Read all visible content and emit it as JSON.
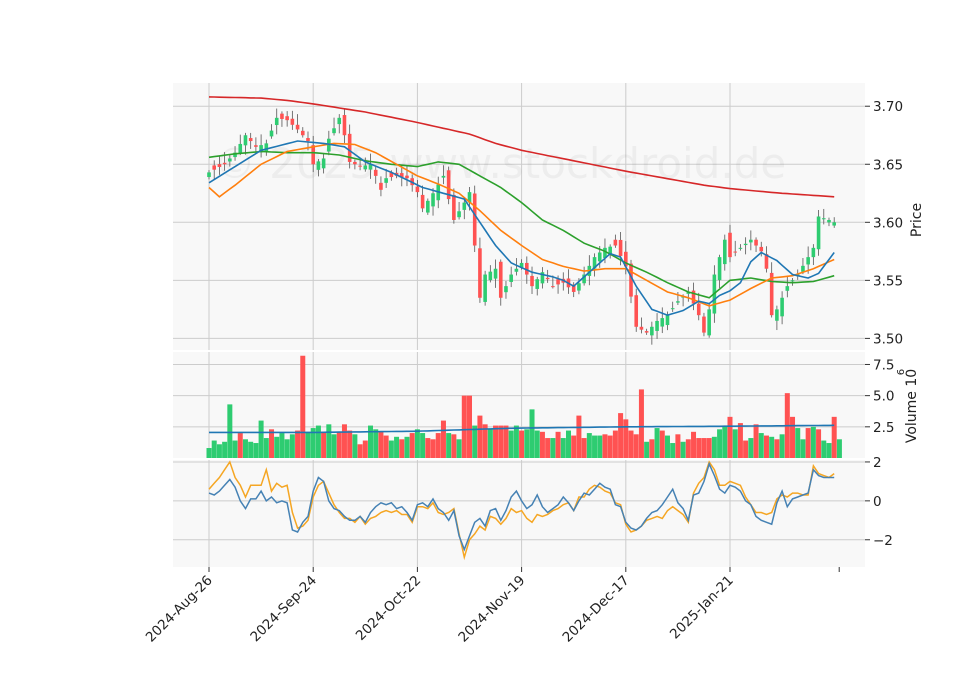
{
  "watermark": "© 2025 www.stockdroid.de",
  "colors": {
    "up": "#2ecc71",
    "down": "#ff5252",
    "ma_fast": "#1f77b4",
    "ma_mid": "#ff7f0e",
    "ma_long": "#2ca02c",
    "ma_200": "#d62728",
    "vol_avg": "#1f77b4",
    "osc_main": "#4682b4",
    "osc_signal": "#f5a623",
    "grid": "#cccccc",
    "panel_bg": "#f8f8f8"
  },
  "chart_data": [
    {
      "type": "candlestick",
      "panel": "price",
      "ylabel": "Price",
      "ylim": [
        3.49,
        3.72
      ],
      "yticks": [
        "3.50",
        "3.55",
        "3.60",
        "3.65",
        "3.70"
      ],
      "ytick_values": [
        3.5,
        3.55,
        3.6,
        3.65,
        3.7
      ],
      "xtick_labels": [
        "2024-Aug-26",
        "2024-Sep-24",
        "2024-Oct-22",
        "2024-Nov-19",
        "2024-Dec-17",
        "2025-Jan-21"
      ],
      "xtick_index": [
        0,
        20,
        40,
        60,
        80,
        100
      ],
      "n_bars": 121,
      "ohlc_anchors": [
        [
          0,
          3.643
        ],
        [
          3,
          3.65
        ],
        [
          5,
          3.66
        ],
        [
          7,
          3.675
        ],
        [
          9,
          3.665
        ],
        [
          11,
          3.668
        ],
        [
          13,
          3.69
        ],
        [
          15,
          3.688
        ],
        [
          17,
          3.68
        ],
        [
          19,
          3.67
        ],
        [
          20,
          3.65
        ],
        [
          22,
          3.655
        ],
        [
          23,
          3.672
        ],
        [
          25,
          3.69
        ],
        [
          26,
          3.675
        ],
        [
          27,
          3.652
        ],
        [
          29,
          3.648
        ],
        [
          31,
          3.65
        ],
        [
          32,
          3.64
        ],
        [
          33,
          3.628
        ],
        [
          34,
          3.638
        ],
        [
          36,
          3.64
        ],
        [
          38,
          3.638
        ],
        [
          40,
          3.626
        ],
        [
          41,
          3.612
        ],
        [
          43,
          3.625
        ],
        [
          45,
          3.64
        ],
        [
          46,
          3.62
        ],
        [
          47,
          3.602
        ],
        [
          49,
          3.617
        ],
        [
          50,
          3.626
        ],
        [
          51,
          3.58
        ],
        [
          52,
          3.535
        ],
        [
          53,
          3.555
        ],
        [
          55,
          3.56
        ],
        [
          56,
          3.535
        ],
        [
          58,
          3.555
        ],
        [
          60,
          3.565
        ],
        [
          62,
          3.545
        ],
        [
          64,
          3.557
        ],
        [
          66,
          3.545
        ],
        [
          68,
          3.548
        ],
        [
          70,
          3.54
        ],
        [
          72,
          3.555
        ],
        [
          74,
          3.57
        ],
        [
          76,
          3.578
        ],
        [
          78,
          3.58
        ],
        [
          80,
          3.562
        ],
        [
          82,
          3.51
        ],
        [
          84,
          3.505
        ],
        [
          86,
          3.515
        ],
        [
          88,
          3.52
        ],
        [
          90,
          3.532
        ],
        [
          92,
          3.54
        ],
        [
          94,
          3.52
        ],
        [
          95,
          3.505
        ],
        [
          96,
          3.525
        ],
        [
          97,
          3.555
        ],
        [
          99,
          3.585
        ],
        [
          100,
          3.57
        ],
        [
          102,
          3.578
        ],
        [
          104,
          3.585
        ],
        [
          106,
          3.575
        ],
        [
          107,
          3.56
        ],
        [
          108,
          3.52
        ],
        [
          109,
          3.525
        ],
        [
          111,
          3.545
        ],
        [
          113,
          3.555
        ],
        [
          115,
          3.57
        ],
        [
          116,
          3.578
        ],
        [
          117,
          3.605
        ],
        [
          119,
          3.602
        ],
        [
          120,
          3.6
        ]
      ],
      "ma_fast_anchors": [
        [
          0,
          3.634
        ],
        [
          10,
          3.662
        ],
        [
          17,
          3.67
        ],
        [
          22,
          3.668
        ],
        [
          26,
          3.665
        ],
        [
          30,
          3.652
        ],
        [
          35,
          3.643
        ],
        [
          41,
          3.63
        ],
        [
          45,
          3.625
        ],
        [
          49,
          3.62
        ],
        [
          52,
          3.6
        ],
        [
          55,
          3.58
        ],
        [
          58,
          3.565
        ],
        [
          62,
          3.557
        ],
        [
          66,
          3.553
        ],
        [
          68,
          3.55
        ],
        [
          70,
          3.545
        ],
        [
          75,
          3.565
        ],
        [
          77,
          3.573
        ],
        [
          79,
          3.57
        ],
        [
          82,
          3.545
        ],
        [
          85,
          3.525
        ],
        [
          88,
          3.52
        ],
        [
          91,
          3.524
        ],
        [
          94,
          3.532
        ],
        [
          96,
          3.53
        ],
        [
          98,
          3.537
        ],
        [
          100,
          3.541
        ],
        [
          102,
          3.548
        ],
        [
          104,
          3.566
        ],
        [
          106,
          3.574
        ],
        [
          109,
          3.567
        ],
        [
          112,
          3.555
        ],
        [
          115,
          3.552
        ],
        [
          117,
          3.556
        ],
        [
          120,
          3.574
        ]
      ],
      "ma_mid_anchors": [
        [
          0,
          3.63
        ],
        [
          2,
          3.622
        ],
        [
          5,
          3.632
        ],
        [
          10,
          3.65
        ],
        [
          15,
          3.661
        ],
        [
          20,
          3.665
        ],
        [
          24,
          3.668
        ],
        [
          28,
          3.667
        ],
        [
          32,
          3.66
        ],
        [
          36,
          3.65
        ],
        [
          40,
          3.64
        ],
        [
          44,
          3.633
        ],
        [
          48,
          3.625
        ],
        [
          52,
          3.61
        ],
        [
          56,
          3.593
        ],
        [
          60,
          3.58
        ],
        [
          64,
          3.568
        ],
        [
          68,
          3.562
        ],
        [
          72,
          3.558
        ],
        [
          76,
          3.56
        ],
        [
          80,
          3.56
        ],
        [
          84,
          3.55
        ],
        [
          88,
          3.54
        ],
        [
          92,
          3.535
        ],
        [
          96,
          3.528
        ],
        [
          100,
          3.533
        ],
        [
          104,
          3.543
        ],
        [
          108,
          3.552
        ],
        [
          112,
          3.554
        ],
        [
          116,
          3.56
        ],
        [
          120,
          3.568
        ]
      ],
      "ma_long_anchors": [
        [
          0,
          3.656
        ],
        [
          5,
          3.659
        ],
        [
          10,
          3.661
        ],
        [
          15,
          3.66
        ],
        [
          20,
          3.66
        ],
        [
          25,
          3.658
        ],
        [
          30,
          3.653
        ],
        [
          35,
          3.65
        ],
        [
          40,
          3.648
        ],
        [
          44,
          3.652
        ],
        [
          48,
          3.65
        ],
        [
          52,
          3.64
        ],
        [
          56,
          3.63
        ],
        [
          60,
          3.617
        ],
        [
          64,
          3.602
        ],
        [
          68,
          3.593
        ],
        [
          72,
          3.582
        ],
        [
          76,
          3.575
        ],
        [
          80,
          3.565
        ],
        [
          84,
          3.557
        ],
        [
          88,
          3.548
        ],
        [
          92,
          3.54
        ],
        [
          96,
          3.535
        ],
        [
          100,
          3.55
        ],
        [
          104,
          3.552
        ],
        [
          108,
          3.549
        ],
        [
          112,
          3.548
        ],
        [
          116,
          3.549
        ],
        [
          120,
          3.554
        ]
      ],
      "ma_200_anchors": [
        [
          0,
          3.708
        ],
        [
          10,
          3.707
        ],
        [
          15,
          3.705
        ],
        [
          20,
          3.702
        ],
        [
          30,
          3.695
        ],
        [
          40,
          3.686
        ],
        [
          50,
          3.676
        ],
        [
          55,
          3.668
        ],
        [
          60,
          3.662
        ],
        [
          70,
          3.653
        ],
        [
          80,
          3.644
        ],
        [
          90,
          3.636
        ],
        [
          95,
          3.632
        ],
        [
          100,
          3.629
        ],
        [
          110,
          3.625
        ],
        [
          120,
          3.622
        ]
      ]
    },
    {
      "type": "bar",
      "panel": "volume",
      "ylabel": "Volume  10^6",
      "ylim": [
        0,
        8.5
      ],
      "yticks": [
        "2.5",
        "5.0",
        "7.5"
      ],
      "ytick_values": [
        2.5,
        5.0,
        7.5
      ],
      "values": [
        0.8,
        1.4,
        1.1,
        1.3,
        4.3,
        1.4,
        2.0,
        1.5,
        1.3,
        1.2,
        3.0,
        1.6,
        2.3,
        1.7,
        2.0,
        1.5,
        1.9,
        2.2,
        8.2,
        2.1,
        2.4,
        2.6,
        2.1,
        2.7,
        1.9,
        2.1,
        2.7,
        2.2,
        1.9,
        1.1,
        1.4,
        2.6,
        2.3,
        2.1,
        1.8,
        1.4,
        1.7,
        1.5,
        1.7,
        2.0,
        2.3,
        2.0,
        1.6,
        1.5,
        2.0,
        3.0,
        2.0,
        1.9,
        1.5,
        5.0,
        5.0,
        2.6,
        3.4,
        2.7,
        2.3,
        2.6,
        2.6,
        2.6,
        2.2,
        2.6,
        2.2,
        2.3,
        3.9,
        2.2,
        2.1,
        1.6,
        1.6,
        2.1,
        1.6,
        2.2,
        1.8,
        3.4,
        1.6,
        2.0,
        1.8,
        1.8,
        1.9,
        1.8,
        2.2,
        3.6,
        3.1,
        2.2,
        1.9,
        5.5,
        1.3,
        1.5,
        2.4,
        2.2,
        1.8,
        1.2,
        1.9,
        1.3,
        1.5,
        2.1,
        1.6,
        1.6,
        1.6,
        1.7,
        2.3,
        2.6,
        3.3,
        2.3,
        2.8,
        1.4,
        1.6,
        2.7,
        2.0,
        1.8,
        1.7,
        1.5,
        1.9,
        5.2,
        3.3,
        2.4,
        1.5,
        2.4,
        2.5,
        2.3,
        1.4,
        1.2,
        3.3,
        1.5
      ],
      "down": [
        0,
        0,
        0,
        0,
        0,
        0,
        1,
        0,
        0,
        0,
        0,
        0,
        1,
        0,
        0,
        0,
        0,
        1,
        1,
        0,
        0,
        0,
        1,
        0,
        0,
        1,
        1,
        1,
        0,
        1,
        1,
        0,
        0,
        1,
        1,
        0,
        0,
        1,
        0,
        1,
        0,
        0,
        1,
        1,
        1,
        1,
        0,
        1,
        0,
        1,
        1,
        0,
        1,
        1,
        0,
        1,
        1,
        1,
        0,
        0,
        1,
        0,
        0,
        0,
        1,
        1,
        0,
        1,
        0,
        0,
        1,
        1,
        1,
        0,
        0,
        0,
        1,
        1,
        1,
        1,
        1,
        1,
        1,
        1,
        0,
        1,
        0,
        1,
        0,
        0,
        1,
        0,
        1,
        1,
        1,
        1,
        1,
        0,
        0,
        0,
        1,
        0,
        1,
        1,
        0,
        1,
        0,
        1,
        0,
        1,
        0,
        1,
        1,
        0,
        0,
        1,
        0,
        1,
        0,
        0,
        1
      ],
      "avg_anchors": [
        [
          0,
          2.05
        ],
        [
          20,
          2.05
        ],
        [
          40,
          2.15
        ],
        [
          55,
          2.35
        ],
        [
          60,
          2.4
        ],
        [
          80,
          2.5
        ],
        [
          100,
          2.55
        ],
        [
          120,
          2.62
        ]
      ]
    },
    {
      "type": "line",
      "panel": "oscillator",
      "ylim": [
        -3.4,
        2.1
      ],
      "yticks": [
        "−2",
        "0",
        "2"
      ],
      "ytick_values": [
        -2,
        0,
        2
      ],
      "series": [
        {
          "key": "main",
          "values": [
            0.4,
            0.3,
            0.5,
            0.8,
            1.1,
            0.7,
            0.0,
            -0.4,
            0.1,
            0.1,
            0.5,
            0.0,
            0.2,
            -0.1,
            0.0,
            -0.1,
            -1.5,
            -1.6,
            -1.1,
            -0.8,
            0.5,
            1.2,
            1.0,
            0.0,
            -0.4,
            -0.5,
            -0.8,
            -1.0,
            -1.0,
            -0.8,
            -1.1,
            -0.6,
            -0.3,
            -0.1,
            -0.2,
            -0.1,
            -0.4,
            -0.3,
            -0.6,
            -1.0,
            -0.2,
            -0.1,
            -0.3,
            0.1,
            -0.4,
            -0.6,
            -1.0,
            -0.5,
            -1.8,
            -2.5,
            -1.8,
            -1.1,
            -0.9,
            -1.3,
            -0.5,
            -0.4,
            -1.0,
            -0.5,
            0.2,
            0.5,
            0.0,
            -0.4,
            -0.2,
            0.3,
            -0.3,
            -0.6,
            -0.4,
            -0.2,
            0.2,
            -0.1,
            -0.5,
            0.0,
            0.4,
            0.3,
            0.6,
            0.9,
            0.7,
            0.6,
            -0.2,
            -0.3,
            -1.1,
            -1.4,
            -1.5,
            -1.3,
            -0.9,
            -0.6,
            -0.5,
            -0.2,
            0.2,
            0.6,
            -0.1,
            -0.4,
            -1.0,
            0.3,
            0.4,
            1.0,
            1.9,
            1.3,
            0.6,
            0.4,
            0.8,
            0.7,
            0.5,
            0.0,
            -0.2,
            -0.8,
            -1.0,
            -1.1,
            -1.2,
            -0.1,
            0.5,
            -0.3,
            0.1,
            0.2,
            0.3,
            0.4,
            1.6,
            1.3,
            1.2,
            1.2,
            1.2
          ],
          "color": "#4682b4"
        },
        {
          "key": "signal",
          "values": [
            0.6,
            0.9,
            1.2,
            1.6,
            2.0,
            1.2,
            0.8,
            0.2,
            0.8,
            0.8,
            0.8,
            1.6,
            0.5,
            0.9,
            0.7,
            0.8,
            -0.6,
            -1.4,
            -1.3,
            -1.0,
            0.2,
            0.8,
            1.0,
            0.4,
            -0.2,
            -0.6,
            -0.9,
            -0.9,
            -1.1,
            -0.8,
            -1.2,
            -0.9,
            -0.8,
            -0.6,
            -0.5,
            -0.6,
            -0.5,
            -0.7,
            -0.7,
            -1.1,
            -0.3,
            -0.3,
            -0.4,
            -0.1,
            -0.6,
            -0.7,
            -0.6,
            -0.4,
            -1.7,
            -2.9,
            -2.0,
            -1.7,
            -1.3,
            -1.5,
            -0.8,
            -0.9,
            -1.2,
            -0.9,
            -0.4,
            -0.6,
            -0.5,
            -0.9,
            -1.1,
            -0.7,
            -0.8,
            -0.7,
            -0.5,
            -0.4,
            -0.2,
            -0.1,
            -0.5,
            0.2,
            0.2,
            0.6,
            0.8,
            0.7,
            0.5,
            0.4,
            -0.1,
            -0.2,
            -1.2,
            -1.6,
            -1.5,
            -1.3,
            -1.0,
            -0.9,
            -0.8,
            -0.9,
            -0.5,
            -0.3,
            -0.5,
            -0.7,
            -1.1,
            0.4,
            0.9,
            1.2,
            2.0,
            1.6,
            0.8,
            0.8,
            1.0,
            0.9,
            0.8,
            0.2,
            -0.2,
            -0.6,
            -0.6,
            -0.7,
            -0.6,
            0.1,
            0.3,
            0.2,
            0.4,
            0.4,
            0.3,
            0.3,
            1.8,
            1.4,
            1.3,
            1.2,
            1.4
          ],
          "color": "#f5a623"
        }
      ]
    }
  ]
}
